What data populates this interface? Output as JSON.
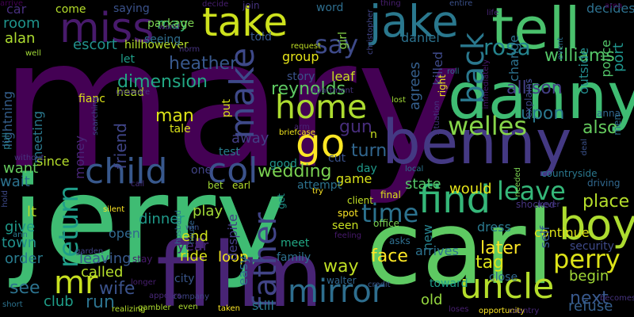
{
  "background": "#000000",
  "words": [
    {
      "text": "mary",
      "color": "#440154"
    },
    {
      "text": "jerry",
      "color": "#3fbc73"
    },
    {
      "text": "carl",
      "color": "#5ec962"
    },
    {
      "text": "benny",
      "color": "#443983"
    },
    {
      "text": "film",
      "color": "#482475"
    },
    {
      "text": "danny",
      "color": "#3fbc73"
    },
    {
      "text": "tell",
      "color": "#4ac16d"
    },
    {
      "text": "jake",
      "color": "#2a788e"
    },
    {
      "text": "miss",
      "color": "#481a6c"
    },
    {
      "text": "take",
      "color": "#cde11d"
    },
    {
      "text": "child",
      "color": "#38588c"
    },
    {
      "text": "col",
      "color": "#3b528b"
    },
    {
      "text": "uncle",
      "color": "#b5de2b"
    },
    {
      "text": "mirror",
      "color": "#2e6e8e"
    },
    {
      "text": "boy",
      "color": "#addc30"
    },
    {
      "text": "find",
      "color": "#35b779"
    },
    {
      "text": "home",
      "color": "#addc30"
    },
    {
      "text": "make",
      "color": "#3e4989"
    },
    {
      "text": "go",
      "color": "#fde725"
    },
    {
      "text": "say",
      "color": "#3e4a89"
    },
    {
      "text": "rosa",
      "color": "#25848e"
    },
    {
      "text": "back",
      "color": "#2a788e"
    },
    {
      "text": "welles",
      "color": "#86d549"
    },
    {
      "text": "perry",
      "color": "#dde318"
    },
    {
      "text": "return",
      "color": "#1f9e89"
    },
    {
      "text": "father",
      "color": "#414487"
    },
    {
      "text": "time",
      "color": "#2c728e"
    },
    {
      "text": "leave",
      "color": "#35b779"
    },
    {
      "text": "mr",
      "color": "#c8e020"
    },
    {
      "text": "place",
      "color": "#b5de2b"
    },
    {
      "text": "allison",
      "color": "#433e85"
    },
    {
      "text": "williams",
      "color": "#54c568"
    },
    {
      "text": "upon",
      "color": "#2a788e"
    },
    {
      "text": "also",
      "color": "#65cb5e"
    },
    {
      "text": "wedding",
      "color": "#7ad151"
    },
    {
      "text": "turn",
      "color": "#31668e"
    },
    {
      "text": "reynolds",
      "color": "#5ec962"
    },
    {
      "text": "dimension",
      "color": "#22a884"
    },
    {
      "text": "heather",
      "color": "#38588c"
    },
    {
      "text": "room",
      "color": "#1f948c"
    },
    {
      "text": "alan",
      "color": "#addc30"
    },
    {
      "text": "escort",
      "color": "#21918c"
    },
    {
      "text": "man",
      "color": "#dde318"
    },
    {
      "text": "gun",
      "color": "#472d7b"
    },
    {
      "text": "would",
      "color": "#e5e419"
    },
    {
      "text": "state",
      "color": "#54c568"
    },
    {
      "text": "see",
      "color": "#2c728e"
    },
    {
      "text": "club",
      "color": "#1f9e89"
    },
    {
      "text": "wife",
      "color": "#3b528b"
    },
    {
      "text": "run",
      "color": "#2c728e"
    },
    {
      "text": "called",
      "color": "#b5de2b"
    },
    {
      "text": "leaving",
      "color": "#38598c"
    },
    {
      "text": "loop",
      "color": "#f1e51d"
    },
    {
      "text": "play",
      "color": "#a2da37"
    },
    {
      "text": "end",
      "color": "#cde11d"
    },
    {
      "text": "year",
      "color": "#482878"
    },
    {
      "text": "dinner",
      "color": "#1f9a8a"
    },
    {
      "text": "ride",
      "color": "#d8e219"
    },
    {
      "text": "face",
      "color": "#fde725"
    },
    {
      "text": "way",
      "color": "#c0df25"
    },
    {
      "text": "tag",
      "color": "#dde318"
    },
    {
      "text": "later",
      "color": "#fde725"
    },
    {
      "text": "begin",
      "color": "#a2da37"
    },
    {
      "text": "next",
      "color": "#38588c"
    },
    {
      "text": "refuse",
      "color": "#355f8d"
    },
    {
      "text": "old",
      "color": "#95d840"
    },
    {
      "text": "town",
      "color": "#21918c"
    },
    {
      "text": "order",
      "color": "#287c8e"
    },
    {
      "text": "give",
      "color": "#1f9a8a"
    },
    {
      "text": "lt",
      "color": "#b5de2b"
    },
    {
      "text": "wait",
      "color": "#2c728e"
    },
    {
      "text": "want",
      "color": "#65cb5e"
    },
    {
      "text": "money",
      "color": "#482677"
    },
    {
      "text": "friend",
      "color": "#404588"
    },
    {
      "text": "meeting",
      "color": "#2a788e"
    },
    {
      "text": "lightning",
      "color": "#355f8d"
    },
    {
      "text": "since",
      "color": "#b5de2b"
    },
    {
      "text": "away",
      "color": "#433e85"
    },
    {
      "text": "test",
      "color": "#287d8e"
    },
    {
      "text": "story",
      "color": "#3b528b"
    },
    {
      "text": "leaf",
      "color": "#c8e020"
    },
    {
      "text": "agrees",
      "color": "#355f8d"
    },
    {
      "text": "daniel",
      "color": "#2c728e"
    },
    {
      "text": "group",
      "color": "#e5e419"
    },
    {
      "text": "killed",
      "color": "#3e4a89"
    },
    {
      "text": "right",
      "color": "#f1e51d"
    },
    {
      "text": "police",
      "color": "#52c569"
    },
    {
      "text": "decides",
      "color": "#2d708e"
    },
    {
      "text": "outside",
      "color": "#238a8d"
    },
    {
      "text": "port",
      "color": "#1f948c"
    },
    {
      "text": "change",
      "color": "#2c728e"
    },
    {
      "text": "new",
      "color": "#26828e"
    },
    {
      "text": "arrives",
      "color": "#2c728e"
    },
    {
      "text": "dress",
      "color": "#2a788e"
    },
    {
      "text": "continue",
      "color": "#dde318"
    },
    {
      "text": "self",
      "color": "#38588c"
    },
    {
      "text": "security",
      "color": "#3e4a89"
    },
    {
      "text": "close",
      "color": "#31688e"
    },
    {
      "text": "toward",
      "color": "#1f9e89"
    },
    {
      "text": "walter",
      "color": "#31668e"
    },
    {
      "text": "family",
      "color": "#2d708e"
    },
    {
      "text": "meet",
      "color": "#22a884"
    },
    {
      "text": "asks",
      "color": "#2e6e8e"
    },
    {
      "text": "seen",
      "color": "#c8e020"
    },
    {
      "text": "game",
      "color": "#d8e219"
    },
    {
      "text": "day",
      "color": "#1f9a8a"
    },
    {
      "text": "cut",
      "color": "#3b528b"
    },
    {
      "text": "attempt",
      "color": "#2c728e"
    },
    {
      "text": "still",
      "color": "#2a788e"
    },
    {
      "text": "easy",
      "color": "#2e6e8e"
    },
    {
      "text": "despite",
      "color": "#433e85"
    },
    {
      "text": "city",
      "color": "#39568c"
    },
    {
      "text": "tale",
      "color": "#d8e219"
    },
    {
      "text": "head",
      "color": "#b5de2b"
    },
    {
      "text": "fianc",
      "color": "#dde318"
    },
    {
      "text": "let",
      "color": "#1f9e89"
    },
    {
      "text": "may",
      "color": "#35b779"
    },
    {
      "text": "car",
      "color": "#472f7d"
    },
    {
      "text": "come",
      "color": "#b5de2b"
    },
    {
      "text": "saying",
      "color": "#3b528b"
    },
    {
      "text": "package",
      "color": "#7ad151"
    },
    {
      "text": "word",
      "color": "#2e6e8e"
    },
    {
      "text": "hillhowever",
      "color": "#b5de2b"
    },
    {
      "text": "n",
      "color": "#c8e020"
    },
    {
      "text": "good",
      "color": "#1f948c"
    },
    {
      "text": "one",
      "color": "#414487"
    },
    {
      "text": "put",
      "color": "#d8e219"
    },
    {
      "text": "told",
      "color": "#38588c"
    },
    {
      "text": "girl",
      "color": "#86d549"
    },
    {
      "text": "seeing",
      "color": "#2e6e8e"
    },
    {
      "text": "wand",
      "color": "#482878"
    },
    {
      "text": "join",
      "color": "#46337f"
    },
    {
      "text": "request",
      "color": "#c0df25"
    },
    {
      "text": "thing",
      "color": "#481f70"
    },
    {
      "text": "lost",
      "color": "#a2da37"
    },
    {
      "text": "roll",
      "color": "#2e6e8e"
    },
    {
      "text": "life",
      "color": "#482475"
    },
    {
      "text": "event",
      "color": "#2d708e"
    },
    {
      "text": "searching",
      "color": "#404588"
    },
    {
      "text": "apartment",
      "color": "#46337f"
    },
    {
      "text": "situation",
      "color": "#46337f"
    },
    {
      "text": "explains",
      "color": "#3e4a89"
    },
    {
      "text": "immediately",
      "color": "#481a6c"
    },
    {
      "text": "christopher",
      "color": "#414487"
    },
    {
      "text": "countryside",
      "color": "#2a788e"
    },
    {
      "text": "deal",
      "color": "#3b528b"
    },
    {
      "text": "driving",
      "color": "#31688e"
    },
    {
      "text": "anna",
      "color": "#31668e"
    },
    {
      "text": "men",
      "color": "#2e6e8e"
    },
    {
      "text": "local",
      "color": "#2c728e"
    },
    {
      "text": "final",
      "color": "#dde318"
    },
    {
      "text": "client",
      "color": "#c0df25"
    },
    {
      "text": "spot",
      "color": "#fde725"
    },
    {
      "text": "office",
      "color": "#7ad151"
    },
    {
      "text": "feeling",
      "color": "#481a6c"
    },
    {
      "text": "needed",
      "color": "#7ad151"
    },
    {
      "text": "shocked",
      "color": "#46337f"
    },
    {
      "text": "never",
      "color": "#443983"
    },
    {
      "text": "earl",
      "color": "#b5de2b"
    },
    {
      "text": "bet",
      "color": "#a2da37"
    },
    {
      "text": "try",
      "color": "#fde725"
    },
    {
      "text": "get",
      "color": "#1f948c"
    },
    {
      "text": "credit",
      "color": "#39568c"
    },
    {
      "text": "loses",
      "color": "#482071"
    },
    {
      "text": "opportunity",
      "color": "#fde725"
    },
    {
      "text": "country",
      "color": "#482878"
    },
    {
      "text": "becomes",
      "color": "#46337f"
    },
    {
      "text": "even",
      "color": "#addc30"
    },
    {
      "text": "gambler",
      "color": "#addc30"
    },
    {
      "text": "realizing",
      "color": "#b5de2b"
    },
    {
      "text": "taken",
      "color": "#fde725"
    },
    {
      "text": "company",
      "color": "#404588"
    },
    {
      "text": "longer",
      "color": "#481f70"
    },
    {
      "text": "appears",
      "color": "#482878"
    },
    {
      "text": "win",
      "color": "#3b528b"
    },
    {
      "text": "house",
      "color": "#32648e"
    },
    {
      "text": "husband",
      "color": "#2d708e"
    },
    {
      "text": "stay",
      "color": "#481a6c"
    },
    {
      "text": "silent",
      "color": "#fde725"
    },
    {
      "text": "call",
      "color": "#472d7b"
    },
    {
      "text": "garden",
      "color": "#414487"
    },
    {
      "text": "short",
      "color": "#2c728e"
    },
    {
      "text": "ann",
      "color": "#287c8e"
    },
    {
      "text": "without",
      "color": "#46337f"
    },
    {
      "text": "pull",
      "color": "#287d8e"
    },
    {
      "text": "hold",
      "color": "#3e4a89"
    },
    {
      "text": "open",
      "color": "#31688e"
    },
    {
      "text": "well",
      "color": "#a2da37"
    },
    {
      "text": "unaware",
      "color": "#46337f"
    },
    {
      "text": "decide",
      "color": "#481f70"
    },
    {
      "text": "briefcase",
      "color": "#f1e51d"
    },
    {
      "text": "arm",
      "color": "#482475"
    },
    {
      "text": "entire",
      "color": "#3b528b"
    },
    {
      "text": "area",
      "color": "#440154"
    },
    {
      "text": "norm",
      "color": "#46337f"
    },
    {
      "text": "arrive",
      "color": "#440154"
    }
  ]
}
